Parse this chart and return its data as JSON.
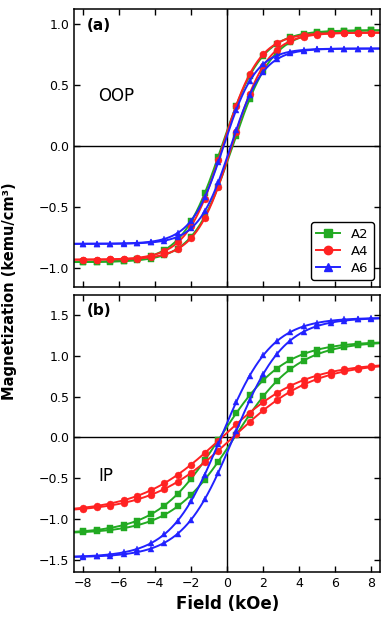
{
  "xlabel": "Field (kOe)",
  "ylabel": "Magnetization (kemu/cm³)",
  "panel_a_label": "(a)",
  "panel_b_label": "(b)",
  "panel_a_text": "OOP",
  "panel_b_text": "IP",
  "legend_labels": [
    "A2",
    "A4",
    "A6"
  ],
  "colors": [
    "#22aa22",
    "#ff2222",
    "#2222ff"
  ],
  "markers": [
    "s",
    "o",
    "^"
  ],
  "xlim": [
    -8.5,
    8.5
  ],
  "oop_ylim": [
    -1.15,
    1.12
  ],
  "ip_ylim": [
    -1.65,
    1.75
  ],
  "oop_yticks": [
    -1.0,
    -0.5,
    0.0,
    0.5,
    1.0
  ],
  "ip_yticks": [
    -1.5,
    -1.0,
    -0.5,
    0.0,
    0.5,
    1.0,
    1.5
  ],
  "xticks": [
    -8,
    -6,
    -4,
    -2,
    0,
    2,
    4,
    6,
    8
  ],
  "marker_size": 5,
  "line_width": 1.4,
  "oop_params": [
    {
      "Ms": 0.95,
      "Hc": 0.3,
      "slope": 2.2
    },
    {
      "Ms": 0.93,
      "Hc": 0.25,
      "slope": 2.0
    },
    {
      "Ms": 0.8,
      "Hc": 0.2,
      "slope": 1.8
    }
  ],
  "ip_params": [
    {
      "Ms": 1.18,
      "Hc": 0.4,
      "slope": 3.5
    },
    {
      "Ms": 0.92,
      "Hc": 0.3,
      "slope": 4.5
    },
    {
      "Ms": 1.47,
      "Hc": 0.35,
      "slope": 2.8
    }
  ]
}
